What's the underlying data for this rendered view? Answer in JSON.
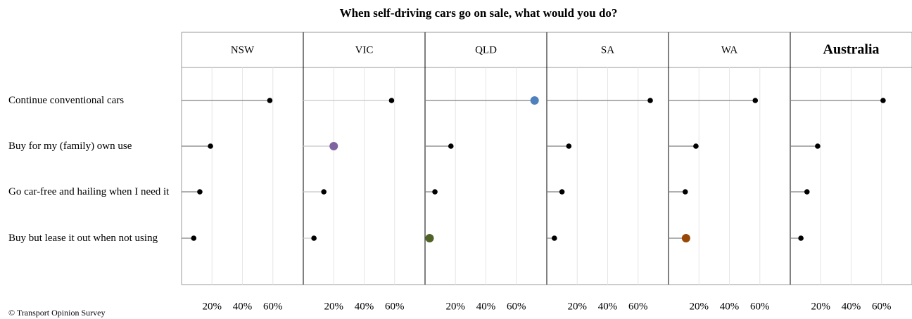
{
  "chart_data": {
    "type": "lollipop",
    "title": "When self-driving cars go on sale, what would you do?",
    "categories": [
      "Continue conventional cars",
      "Buy for my (family) own use",
      "Go car-free and hailing when I need it",
      "Buy but lease it out when not using"
    ],
    "xlim": [
      0,
      80
    ],
    "xticks": [
      {
        "value": 20,
        "label": "20%"
      },
      {
        "value": 40,
        "label": "40%"
      },
      {
        "value": 60,
        "label": "60%"
      }
    ],
    "grid": true,
    "panels": [
      {
        "name": "NSW",
        "values": [
          58,
          19,
          12,
          8
        ],
        "line_color": "#808080",
        "colors": [
          "#000000",
          "#000000",
          "#000000",
          "#000000"
        ]
      },
      {
        "name": "VIC",
        "values": [
          58,
          20,
          13.5,
          7
        ],
        "line_color": "#c8c8c8",
        "colors": [
          "#000000",
          "#8064a2",
          "#000000",
          "#000000"
        ]
      },
      {
        "name": "QLD",
        "values": [
          72,
          17,
          6.5,
          3
        ],
        "line_color": "#808080",
        "colors": [
          "#4f81bd",
          "#000000",
          "#000000",
          "#4f6228"
        ]
      },
      {
        "name": "SA",
        "values": [
          68,
          14.5,
          10,
          5
        ],
        "line_color": "#808080",
        "colors": [
          "#000000",
          "#000000",
          "#000000",
          "#000000"
        ]
      },
      {
        "name": "WA",
        "values": [
          57,
          18,
          11,
          11.5
        ],
        "line_color": "#808080",
        "colors": [
          "#000000",
          "#000000",
          "#000000",
          "#974706"
        ]
      },
      {
        "name": "Australia",
        "values": [
          61,
          18,
          11,
          7
        ],
        "line_color": "#808080",
        "colors": [
          "#000000",
          "#000000",
          "#000000",
          "#000000"
        ],
        "bold": true
      }
    ],
    "footnote": "© Transport Opinion Survey"
  }
}
